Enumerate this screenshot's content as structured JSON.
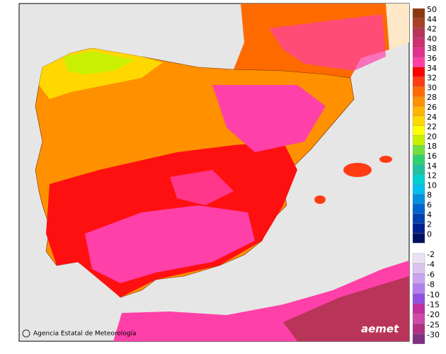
{
  "legend": {
    "upper": [
      {
        "label": "50",
        "color": "#8b3a0f"
      },
      {
        "label": "44",
        "color": "#a8402a"
      },
      {
        "label": "42",
        "color": "#b83458"
      },
      {
        "label": "40",
        "color": "#cc3070"
      },
      {
        "label": "38",
        "color": "#e2308c"
      },
      {
        "label": "36",
        "color": "#ff40a8"
      },
      {
        "label": "34",
        "color": "#ff0000"
      },
      {
        "label": "32",
        "color": "#ff3c14"
      },
      {
        "label": "30",
        "color": "#ff6a00"
      },
      {
        "label": "28",
        "color": "#ff9000"
      },
      {
        "label": "26",
        "color": "#ffb400"
      },
      {
        "label": "24",
        "color": "#ffd800"
      },
      {
        "label": "22",
        "color": "#ffff00"
      },
      {
        "label": "20",
        "color": "#c8f000"
      },
      {
        "label": "18",
        "color": "#70e040"
      },
      {
        "label": "16",
        "color": "#30d070"
      },
      {
        "label": "14",
        "color": "#20c0a0"
      },
      {
        "label": "12",
        "color": "#00d0d0"
      },
      {
        "label": "10",
        "color": "#00c0f0"
      },
      {
        "label": "8",
        "color": "#0090e0"
      },
      {
        "label": "6",
        "color": "#0064d0"
      },
      {
        "label": "4",
        "color": "#0040b0"
      },
      {
        "label": "2",
        "color": "#002090"
      },
      {
        "label": "0",
        "color": "#001060"
      }
    ],
    "lower": [
      {
        "label": "-2",
        "color": "#ece0f4"
      },
      {
        "label": "-4",
        "color": "#dcc4f2"
      },
      {
        "label": "-6",
        "color": "#c8a4f0"
      },
      {
        "label": "-8",
        "color": "#b080f0"
      },
      {
        "label": "-10",
        "color": "#9050e0"
      },
      {
        "label": "-15",
        "color": "#c030a0"
      },
      {
        "label": "-20",
        "color": "#d048a8"
      },
      {
        "label": "-25",
        "color": "#b03080"
      },
      {
        "label": "-30",
        "color": "#803080"
      }
    ]
  },
  "footer": {
    "agency": "Agencia Estatal de Meteorología",
    "logo": "aemet"
  }
}
